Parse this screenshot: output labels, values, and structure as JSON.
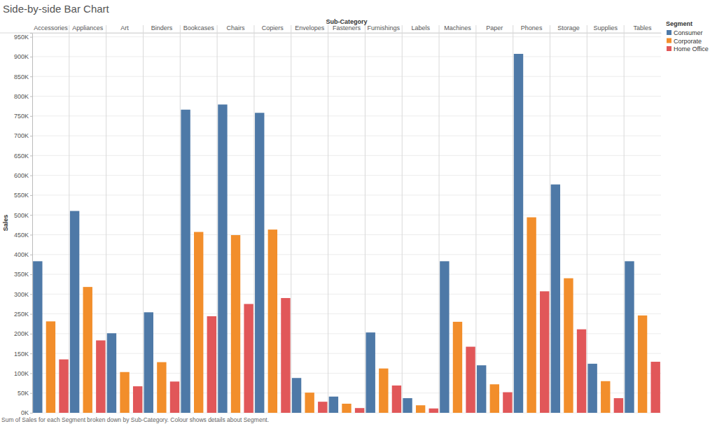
{
  "chart_data": {
    "type": "bar",
    "title": "Side-by-side Bar Chart",
    "x_label": "Sub-Category",
    "y_label": "Sales",
    "legend_title": "Segment",
    "caption": "Sum of Sales for each Segment broken down by Sub-Category. Colour shows details about Segment.",
    "categories": [
      "Accessories",
      "Appliances",
      "Art",
      "Binders",
      "Bookcases",
      "Chairs",
      "Copiers",
      "Envelopes",
      "Fasteners",
      "Furnishings",
      "Labels",
      "Machines",
      "Paper",
      "Phones",
      "Storage",
      "Supplies",
      "Tables"
    ],
    "series": [
      {
        "name": "Consumer",
        "color": "#4e79a7",
        "values": [
          383000,
          510000,
          201000,
          254000,
          766000,
          779000,
          758000,
          88000,
          41000,
          203000,
          37000,
          383000,
          120000,
          907000,
          577000,
          124000,
          383000
        ]
      },
      {
        "name": "Corporate",
        "color": "#f28e2b",
        "values": [
          231000,
          318000,
          103000,
          128000,
          457000,
          449000,
          463000,
          51000,
          23000,
          112000,
          19000,
          230000,
          72000,
          494000,
          340000,
          80000,
          246000
        ]
      },
      {
        "name": "Home Office",
        "color": "#e15759",
        "values": [
          135000,
          183000,
          67000,
          79000,
          244000,
          275000,
          290000,
          28000,
          12000,
          69000,
          11000,
          167000,
          52000,
          307000,
          211000,
          37000,
          129000
        ]
      }
    ],
    "ylim": [
      0,
      960000
    ],
    "yticks": [
      {
        "value": 0,
        "label": "0K"
      },
      {
        "value": 50000,
        "label": "50K"
      },
      {
        "value": 100000,
        "label": "100K"
      },
      {
        "value": 150000,
        "label": "150K"
      },
      {
        "value": 200000,
        "label": "200K"
      },
      {
        "value": 250000,
        "label": "250K"
      },
      {
        "value": 300000,
        "label": "300K"
      },
      {
        "value": 350000,
        "label": "350K"
      },
      {
        "value": 400000,
        "label": "400K"
      },
      {
        "value": 450000,
        "label": "450K"
      },
      {
        "value": 500000,
        "label": "500K"
      },
      {
        "value": 550000,
        "label": "550K"
      },
      {
        "value": 600000,
        "label": "600K"
      },
      {
        "value": 650000,
        "label": "650K"
      },
      {
        "value": 700000,
        "label": "700K"
      },
      {
        "value": 750000,
        "label": "750K"
      },
      {
        "value": 800000,
        "label": "800K"
      },
      {
        "value": 850000,
        "label": "850K"
      },
      {
        "value": 900000,
        "label": "900K"
      },
      {
        "value": 950000,
        "label": "950K"
      }
    ],
    "grid": true,
    "legend": "right"
  }
}
